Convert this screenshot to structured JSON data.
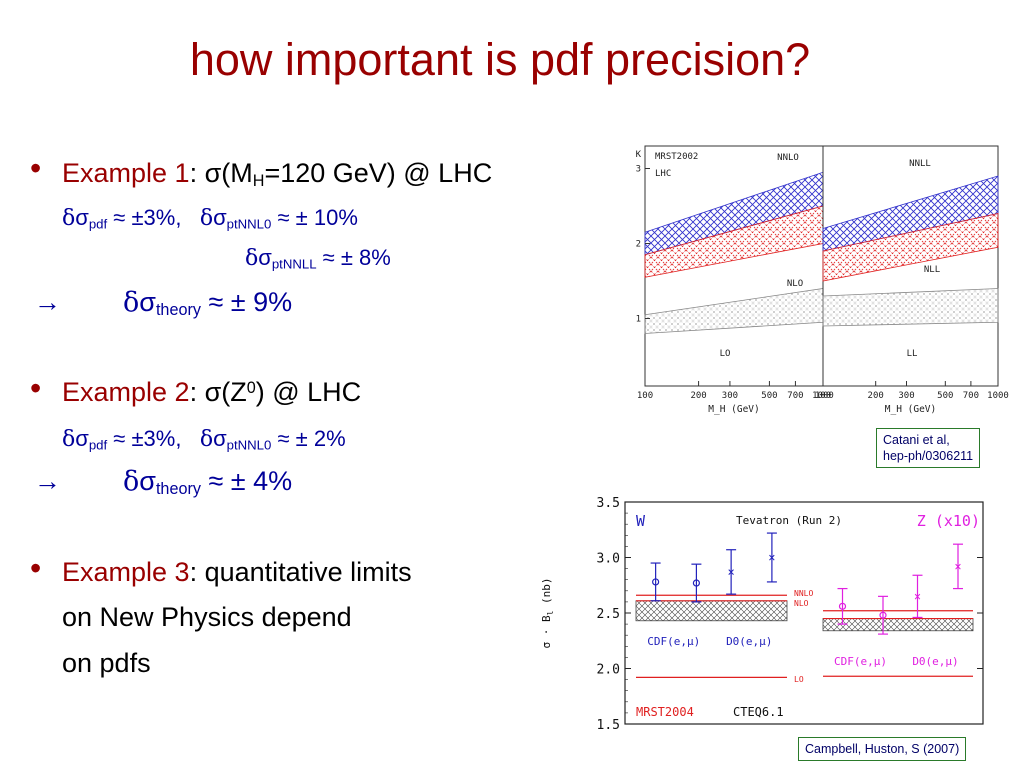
{
  "title": "how important is pdf precision?",
  "ex1": {
    "label": "Example 1",
    "lead": ": σ(M",
    "sub": "H",
    "rest": "=120 GeV) @ LHC",
    "a_d": "δ",
    "a_s": "σ",
    "a_sub": "pdf",
    "a_val": " ≈ ±3%,",
    "b_d": "δ",
    "b_s": "σ",
    "b_sub": "ptNNL0",
    "b_val": " ≈ ± 10%",
    "c_d": "δ",
    "c_s": "σ",
    "c_sub": "ptNNLL",
    "c_val": " ≈ ± 8%",
    "arrow": "→",
    "t_d": "δ",
    "t_s": "σ",
    "t_sub": "theory",
    "t_val": " ≈ ± 9%"
  },
  "ex2": {
    "label": "Example 2",
    "lead": ": σ(Z",
    "sup": "0",
    "rest": ") @ LHC",
    "a_d": "δ",
    "a_s": "σ",
    "a_sub": "pdf",
    "a_val": " ≈ ±3%,",
    "b_d": "δ",
    "b_s": "σ",
    "b_sub": "ptNNL0",
    "b_val": " ≈ ± 2%",
    "arrow": "→",
    "t_d": "δ",
    "t_s": "σ",
    "t_sub": "theory",
    "t_val": " ≈ ± 4%"
  },
  "ex3": {
    "label": "Example 3",
    "lead": ": quantitative limits",
    "line2": "on New Physics depend",
    "line3": "on pdfs"
  },
  "ref1": {
    "line1": "Catani et al,",
    "line2": "hep-ph/0306211"
  },
  "ref2": {
    "text": "Campbell, Huston, S (2007)"
  },
  "colors": {
    "title": "#990000",
    "blue": "#000099",
    "nnlo_band": "#3333cc",
    "nlo_band": "#e02020",
    "magenta": "#e020e0"
  },
  "chart_data": [
    {
      "type": "area",
      "panels": [
        {
          "xlabel": "M_H (GeV)",
          "ylabel": "K",
          "xticks": [
            "100",
            "200",
            "300",
            "500",
            "700",
            "1000"
          ],
          "yticks": [
            "1",
            "2",
            "3"
          ],
          "labels": [
            "MRST2002",
            "LHC",
            "NNLO",
            "NLO",
            "LO"
          ],
          "series": [
            {
              "name": "NNLO",
              "x": [
                100,
                1000
              ],
              "lower": [
                1.85,
                2.5
              ],
              "upper": [
                2.15,
                2.95
              ]
            },
            {
              "name": "NLO",
              "x": [
                100,
                1000
              ],
              "lower": [
                1.55,
                2.0
              ],
              "upper": [
                1.85,
                2.5
              ]
            },
            {
              "name": "LO",
              "x": [
                100,
                1000
              ],
              "lower": [
                0.8,
                0.95
              ],
              "upper": [
                1.05,
                1.4
              ]
            }
          ]
        },
        {
          "xlabel": "M_H (GeV)",
          "xticks": [
            "100",
            "200",
            "300",
            "500",
            "700",
            "1000"
          ],
          "labels": [
            "NNLL",
            "NLL",
            "LL"
          ],
          "series": [
            {
              "name": "NNLL",
              "x": [
                100,
                1000
              ],
              "lower": [
                1.9,
                2.4
              ],
              "upper": [
                2.2,
                2.9
              ]
            },
            {
              "name": "NLL",
              "x": [
                100,
                1000
              ],
              "lower": [
                1.5,
                1.95
              ],
              "upper": [
                1.9,
                2.4
              ]
            },
            {
              "name": "LL",
              "x": [
                100,
                1000
              ],
              "lower": [
                0.9,
                0.95
              ],
              "upper": [
                1.3,
                1.4
              ]
            }
          ]
        }
      ]
    },
    {
      "type": "scatter",
      "ylabel": "σ · B",
      "ylabel_sub": "l",
      "ylabel_unit": " (nb)",
      "yticks": [
        "1.5",
        "2.0",
        "2.5",
        "3.0",
        "3.5"
      ],
      "ylim": [
        1.5,
        3.5
      ],
      "labels": {
        "W": "W",
        "Z": "Z (x10)",
        "run": "Tevatron (Run 2)",
        "nnlo": "NNLO",
        "nlo": "NLO",
        "lo": "LO",
        "mrst": "MRST2004",
        "cteq": "CTEQ6.1"
      },
      "W": {
        "points": [
          {
            "name": "CDF(e,μ)",
            "values": [
              2.78,
              2.77
            ],
            "err": [
              0.17,
              0.17
            ],
            "marker": "o"
          },
          {
            "name": "D0(e,μ)",
            "values": [
              2.87,
              3.0
            ],
            "err": [
              0.2,
              0.22
            ],
            "marker": "x"
          }
        ],
        "nnlo": 2.66,
        "nlo": 2.61,
        "lo": 1.92,
        "band": [
          2.43,
          2.61
        ]
      },
      "Z": {
        "points": [
          {
            "name": "CDF(e,μ)",
            "values": [
              2.56,
              2.48
            ],
            "err": [
              0.16,
              0.17
            ],
            "marker": "o"
          },
          {
            "name": "D0(e,μ)",
            "values": [
              2.65,
              2.92
            ],
            "err": [
              0.19,
              0.2
            ],
            "marker": "x"
          }
        ],
        "nnlo": 2.52,
        "nlo": 2.45,
        "lo": 1.93,
        "band": [
          2.34,
          2.45
        ]
      }
    }
  ]
}
